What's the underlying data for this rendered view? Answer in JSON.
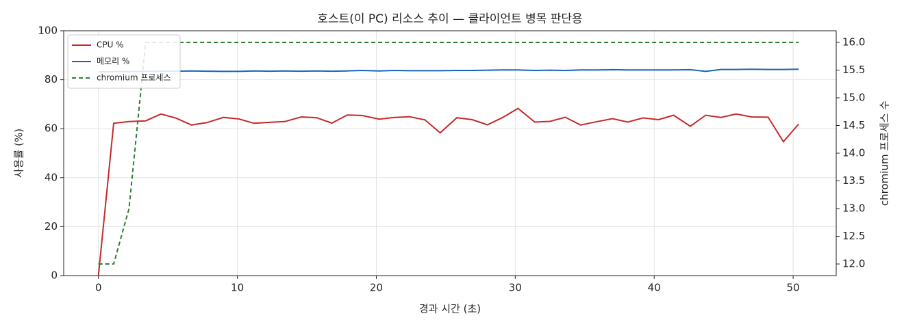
{
  "chart_data": {
    "type": "line",
    "title": "호스트(이 PC) 리소스 추이 — 클라이언트 병목 판단용",
    "xlabel": "경과 시간 (초)",
    "ylabel": "사용률 (%)",
    "y2label": "chromium 프로세스 수",
    "x": [
      0,
      1.1,
      2.2,
      3.4,
      4.5,
      5.6,
      6.7,
      7.8,
      9.0,
      10.1,
      11.2,
      12.3,
      13.4,
      14.6,
      15.7,
      16.8,
      17.9,
      19.0,
      20.2,
      21.3,
      22.4,
      23.5,
      24.6,
      25.8,
      26.9,
      28.0,
      29.1,
      30.2,
      31.4,
      32.5,
      33.6,
      34.7,
      35.8,
      37.0,
      38.1,
      39.2,
      40.3,
      41.4,
      42.6,
      43.7,
      44.8,
      45.9,
      47.0,
      48.2,
      49.3,
      50.4
    ],
    "series": [
      {
        "name": "CPU %",
        "color": "#c62828",
        "style": "solid",
        "values": [
          0,
          62.2,
          62.9,
          63.2,
          66,
          64.3,
          61.5,
          62.5,
          64.6,
          64,
          62.2,
          62.6,
          62.9,
          64.8,
          64.5,
          62.3,
          65.6,
          65.4,
          63.9,
          64.6,
          64.9,
          63.6,
          58.3,
          64.5,
          63.7,
          61.6,
          64.6,
          68.3,
          62.7,
          63.0,
          64.7,
          61.5,
          62.8,
          64.1,
          62.7,
          64.4,
          63.7,
          65.5,
          61.0,
          65.5,
          64.6,
          66.0,
          64.8,
          64.7,
          54.7,
          61.9
        ]
      },
      {
        "name": "메모리 %",
        "color": "#1565c0",
        "style": "solid",
        "values": [
          83.2,
          83.3,
          83.3,
          83.4,
          83.5,
          83.5,
          83.6,
          83.5,
          83.4,
          83.4,
          83.6,
          83.5,
          83.6,
          83.5,
          83.6,
          83.5,
          83.6,
          83.8,
          83.6,
          83.8,
          83.7,
          83.7,
          83.7,
          83.8,
          83.8,
          83.9,
          84.0,
          84.0,
          83.8,
          83.9,
          83.8,
          84.0,
          84.0,
          84.1,
          84.0,
          84.0,
          84.0,
          84.0,
          84.1,
          83.4,
          84.2,
          84.2,
          84.3,
          84.2,
          84.2,
          84.3
        ]
      },
      {
        "name": "chromium 프로세스",
        "color": "#2e7d32",
        "style": "dashed",
        "axis": "y2",
        "values": [
          12,
          12,
          13,
          16,
          16,
          16,
          16,
          16,
          16,
          16,
          16,
          16,
          16,
          16,
          16,
          16,
          16,
          16,
          16,
          16,
          16,
          16,
          16,
          16,
          16,
          16,
          16,
          16,
          16,
          16,
          16,
          16,
          16,
          16,
          16,
          16,
          16,
          16,
          16,
          16,
          16,
          16,
          16,
          16,
          16,
          16
        ]
      }
    ],
    "xlim": [
      -2.5,
      53.1
    ],
    "xticks": [
      0,
      10,
      20,
      30,
      40,
      50
    ],
    "ylim": [
      0,
      100
    ],
    "yticks": [
      0,
      20,
      40,
      60,
      80,
      100
    ],
    "y2lim": [
      11.79,
      16.21
    ],
    "y2ticks": [
      {
        "value": 12,
        "label": "12.0"
      },
      {
        "value": 12.5,
        "label": "12.5"
      },
      {
        "value": 13,
        "label": "13.0"
      },
      {
        "value": 13.5,
        "label": "13.5"
      },
      {
        "value": 14,
        "label": "14.0"
      },
      {
        "value": 14.5,
        "label": "14.5"
      },
      {
        "value": 15,
        "label": "15.0"
      },
      {
        "value": 15.5,
        "label": "15.5"
      },
      {
        "value": 16,
        "label": "16.0"
      }
    ],
    "grid": true,
    "legend": "upper left"
  }
}
